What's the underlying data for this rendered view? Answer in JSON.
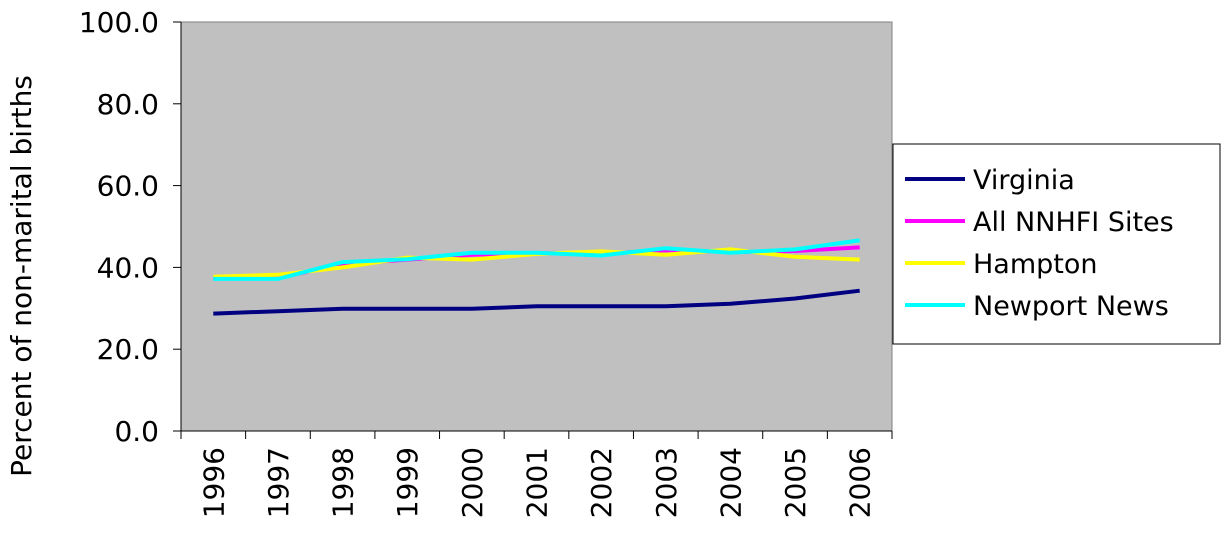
{
  "chart_data": {
    "type": "line",
    "title": "",
    "xlabel": "",
    "ylabel": "Percent of non-marital births",
    "x": [
      "1996",
      "1997",
      "1998",
      "1999",
      "2000",
      "2001",
      "2002",
      "2003",
      "2004",
      "2005",
      "2006"
    ],
    "ylim": [
      0,
      100
    ],
    "yticks": [
      "0.0",
      "20.0",
      "40.0",
      "60.0",
      "80.0",
      "100.0"
    ],
    "grid": false,
    "plot_background": "#c0c0c0",
    "legend_position": "right",
    "series": [
      {
        "name": "Virginia",
        "color": "#000080",
        "values": [
          28.7,
          29.3,
          29.9,
          29.9,
          29.9,
          30.5,
          30.5,
          30.5,
          31.1,
          32.4,
          34.3
        ]
      },
      {
        "name": "All NNHFI Sites",
        "color": "#ff00ff",
        "values": [
          37.4,
          37.4,
          40.8,
          41.9,
          43.1,
          43.5,
          43.3,
          44.2,
          43.8,
          44.0,
          44.9
        ]
      },
      {
        "name": "Hampton",
        "color": "#ffff00",
        "values": [
          37.7,
          38.2,
          40.0,
          42.4,
          41.9,
          43.3,
          43.9,
          43.1,
          44.4,
          42.6,
          41.9
        ]
      },
      {
        "name": "Newport News",
        "color": "#00ffff",
        "values": [
          37.2,
          37.2,
          41.3,
          42.0,
          43.6,
          43.6,
          42.9,
          44.7,
          43.6,
          44.4,
          46.6
        ]
      }
    ]
  }
}
